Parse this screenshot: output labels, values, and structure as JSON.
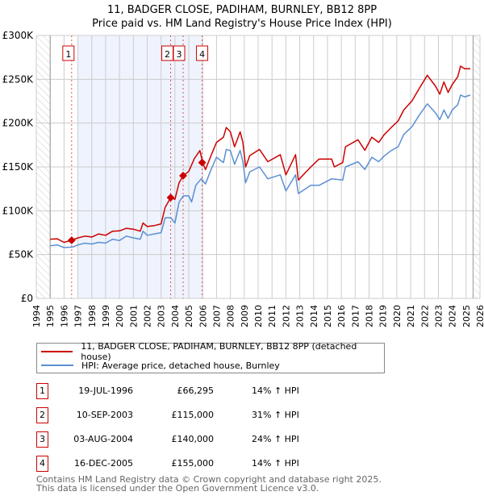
{
  "title": "11, BADGER CLOSE, PADIHAM, BURNLEY, BB12 8PP",
  "subtitle": "Price paid vs. HM Land Registry's House Price Index (HPI)",
  "colors": {
    "property": "#cc0000",
    "hpi": "#5b8fd4",
    "shade": "#eef3fd"
  },
  "chart_data": {
    "type": "line",
    "title": "11, BADGER CLOSE, PADIHAM, BURNLEY, BB12 8PP — Price paid vs. HM Land Registry's House Price Index (HPI)",
    "xlim": [
      1994,
      2026
    ],
    "ylim": [
      0,
      300000
    ],
    "x_ticks": [
      "1994",
      "1995",
      "1996",
      "1997",
      "1998",
      "1999",
      "2000",
      "2001",
      "2002",
      "2003",
      "2004",
      "2005",
      "2006",
      "2007",
      "2008",
      "2009",
      "2010",
      "2011",
      "2012",
      "2013",
      "2014",
      "2015",
      "2016",
      "2017",
      "2018",
      "2019",
      "2020",
      "2021",
      "2022",
      "2023",
      "2024",
      "2025",
      "2026"
    ],
    "y_ticks": [
      {
        "v": 0,
        "label": "£0"
      },
      {
        "v": 50000,
        "label": "£50K"
      },
      {
        "v": 100000,
        "label": "£100K"
      },
      {
        "v": 150000,
        "label": "£150K"
      },
      {
        "v": 200000,
        "label": "£200K"
      },
      {
        "v": 250000,
        "label": "£250K"
      },
      {
        "v": 300000,
        "label": "£300K"
      }
    ],
    "grid": true,
    "legend_placement": "below",
    "shaded_range": [
      1997.0,
      2005.96
    ],
    "series": [
      {
        "name": "11, BADGER CLOSE, PADIHAM, BURNLEY, BB12 8PP (detached house)",
        "x": [
          1995.0,
          1995.5,
          1996.0,
          1996.55,
          1997.0,
          1997.5,
          1998.0,
          1998.5,
          1999.0,
          1999.5,
          2000.0,
          2000.5,
          2001.0,
          2001.5,
          2001.7,
          2002.0,
          2002.5,
          2003.0,
          2003.3,
          2003.7,
          2004.0,
          2004.3,
          2004.6,
          2005.0,
          2005.4,
          2005.8,
          2006.0,
          2006.2,
          2006.6,
          2007.0,
          2007.5,
          2007.7,
          2008.0,
          2008.3,
          2008.7,
          2008.9,
          2009.1,
          2009.4,
          2010.1,
          2010.7,
          2011.6,
          2012.0,
          2012.7,
          2012.9,
          2013.8,
          2014.4,
          2015.3,
          2015.5,
          2016.1,
          2016.3,
          2017.2,
          2017.7,
          2018.2,
          2018.7,
          2019.1,
          2019.6,
          2020.1,
          2020.5,
          2021.1,
          2021.6,
          2022.2,
          2022.8,
          2023.1,
          2023.4,
          2023.7,
          2024.0,
          2024.4,
          2024.6,
          2024.9,
          2025.3
        ],
        "y": [
          67500,
          68000,
          64000,
          66295,
          69000,
          71000,
          70000,
          73500,
          72000,
          76700,
          77000,
          80000,
          79000,
          76700,
          86000,
          82000,
          83000,
          85000,
          104000,
          115000,
          113000,
          132000,
          140000,
          145000,
          159500,
          168700,
          155000,
          147000,
          163000,
          178000,
          184000,
          195000,
          190000,
          173000,
          190000,
          178000,
          150000,
          163000,
          170000,
          156000,
          164000,
          141000,
          164000,
          135000,
          150000,
          159000,
          159000,
          150000,
          155000,
          173000,
          181000,
          169000,
          184000,
          178000,
          187000,
          195000,
          202500,
          215000,
          225500,
          239000,
          254600,
          242000,
          233000,
          247000,
          235000,
          244000,
          253000,
          265000,
          262000,
          262000
        ]
      },
      {
        "name": "HPI: Average price, detached house, Burnley",
        "x": [
          1995.0,
          1995.5,
          1996.0,
          1996.6,
          1997.0,
          1997.5,
          1998.0,
          1998.5,
          1999.0,
          1999.5,
          2000.0,
          2000.5,
          2001.0,
          2001.5,
          2001.7,
          2002.0,
          2002.5,
          2003.0,
          2003.3,
          2003.7,
          2004.0,
          2004.3,
          2004.6,
          2005.0,
          2005.2,
          2005.5,
          2005.9,
          2006.2,
          2006.6,
          2007.0,
          2007.5,
          2007.7,
          2008.0,
          2008.3,
          2008.7,
          2008.9,
          2009.1,
          2009.4,
          2010.1,
          2010.7,
          2011.6,
          2012.0,
          2012.7,
          2012.9,
          2013.8,
          2014.4,
          2015.3,
          2016.1,
          2016.3,
          2017.2,
          2017.7,
          2018.2,
          2018.7,
          2019.1,
          2019.6,
          2020.1,
          2020.5,
          2021.1,
          2021.6,
          2022.2,
          2022.8,
          2023.1,
          2023.4,
          2023.7,
          2024.0,
          2024.4,
          2024.6,
          2024.9,
          2025.3
        ],
        "y": [
          60000,
          61000,
          58000,
          58500,
          61000,
          63000,
          62000,
          64000,
          63000,
          67500,
          66000,
          71000,
          69000,
          67500,
          76700,
          72000,
          73500,
          75000,
          92000,
          92000,
          86000,
          110000,
          117000,
          117000,
          110000,
          129000,
          136500,
          130500,
          147000,
          161000,
          155000,
          170000,
          168700,
          153000,
          169000,
          156000,
          132000,
          144500,
          150000,
          136500,
          141000,
          122700,
          141000,
          119600,
          129000,
          129000,
          136500,
          135000,
          150000,
          156000,
          147000,
          161000,
          156000,
          162600,
          168700,
          173000,
          187000,
          196000,
          208600,
          222000,
          211600,
          204000,
          215000,
          205600,
          215000,
          221000,
          232000,
          230000,
          232000
        ]
      }
    ],
    "data_end": 2025.5,
    "sales": [
      {
        "num": "1",
        "date": "19-JUL-1996",
        "x": 1996.55,
        "price": 66295,
        "price_label": "£66,295",
        "hpi": "14% ↑ HPI"
      },
      {
        "num": "2",
        "date": "10-SEP-2003",
        "x": 2003.69,
        "price": 115000,
        "price_label": "£115,000",
        "hpi": "31% ↑ HPI"
      },
      {
        "num": "3",
        "date": "03-AUG-2004",
        "x": 2004.59,
        "price": 140000,
        "price_label": "£140,000",
        "hpi": "24% ↑ HPI"
      },
      {
        "num": "4",
        "date": "16-DEC-2005",
        "x": 2005.96,
        "price": 155000,
        "price_label": "£155,000",
        "hpi": "14% ↑ HPI"
      }
    ]
  },
  "legend": {
    "property": "11, BADGER CLOSE, PADIHAM, BURNLEY, BB12 8PP (detached house)",
    "hpi": "HPI: Average price, detached house, Burnley"
  },
  "footer": {
    "line1": "Contains HM Land Registry data © Crown copyright and database right 2025.",
    "line2": "This data is licensed under the Open Government Licence v3.0."
  }
}
